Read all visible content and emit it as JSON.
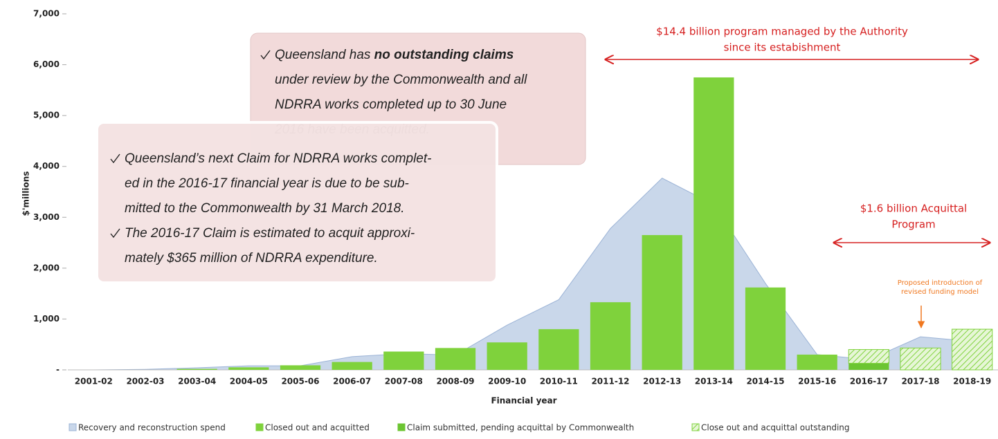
{
  "chart_data": {
    "type": "bar",
    "y_label": "$'millions",
    "x_label": "Financial year",
    "categories": [
      "2001-02",
      "2002-03",
      "2003-04",
      "2004-05",
      "2005-06",
      "2006-07",
      "2007-08",
      "2008-09",
      "2009-10",
      "2010-11",
      "2011-12",
      "2012-13",
      "2013-14",
      "2014-15",
      "2015-16",
      "2016-17",
      "2017-18",
      "2018-19"
    ],
    "ylim": [
      0,
      7000
    ],
    "yticks": [
      {
        "value": 0,
        "label": "-"
      },
      {
        "value": 1000,
        "label": "1,000"
      },
      {
        "value": 2000,
        "label": "2,000"
      },
      {
        "value": 3000,
        "label": "3,000"
      },
      {
        "value": 4000,
        "label": "4,000"
      },
      {
        "value": 5000,
        "label": "5,000"
      },
      {
        "value": 6000,
        "label": "6,000"
      },
      {
        "value": 7000,
        "label": "7,000"
      }
    ],
    "grid": false,
    "area": {
      "name": "Recovery and reconstruction spend",
      "color": "#c9d7ea",
      "values": [
        0,
        10,
        40,
        80,
        80,
        260,
        320,
        290,
        880,
        1380,
        2780,
        3770,
        3250,
        1700,
        300,
        200,
        650,
        560
      ]
    },
    "series": [
      {
        "name": "Closed out and acquitted",
        "color": "#7fd23c",
        "values": [
          0,
          0,
          20,
          50,
          90,
          155,
          360,
          430,
          540,
          800,
          1330,
          2650,
          5750,
          1620,
          300,
          null,
          null,
          null
        ]
      },
      {
        "name": "Claim submitted, pending acquittal by Commonwealth",
        "color": "#6cc532",
        "values": [
          null,
          null,
          null,
          null,
          null,
          null,
          null,
          null,
          null,
          null,
          null,
          null,
          null,
          null,
          null,
          130,
          null,
          null
        ]
      },
      {
        "name": "Close out and acquittal outstanding",
        "color": "#7fd23c",
        "hatched": true,
        "values": [
          null,
          null,
          null,
          null,
          null,
          null,
          null,
          null,
          null,
          null,
          null,
          null,
          null,
          null,
          null,
          270,
          430,
          800
        ]
      }
    ],
    "annotations": {
      "program": [
        "$14.4 billion program managed by the Authority",
        "since its estabishment"
      ],
      "acquittal": [
        "$1.6 billion Acquittal",
        "Program"
      ],
      "funding": [
        "Proposed introduction of",
        "revised funding model"
      ],
      "box1": [
        [
          "Queensland has ",
          "no outstanding claims"
        ],
        [
          "under review by the Commonwealth and all"
        ],
        [
          "NDRRA works completed up to  30 June"
        ],
        [
          "2016 have been acquitted."
        ]
      ],
      "box2": [
        [
          "Queensland’s next Claim for NDRRA works complet-",
          "ed in the 2016-17 financial year is due to be sub-",
          "mitted to the Commonwealth by 31 March 2018."
        ],
        [
          "The 2016-17 Claim is estimated to acquit approxi-",
          "mately $365 million of NDRRA expenditure."
        ]
      ]
    }
  }
}
